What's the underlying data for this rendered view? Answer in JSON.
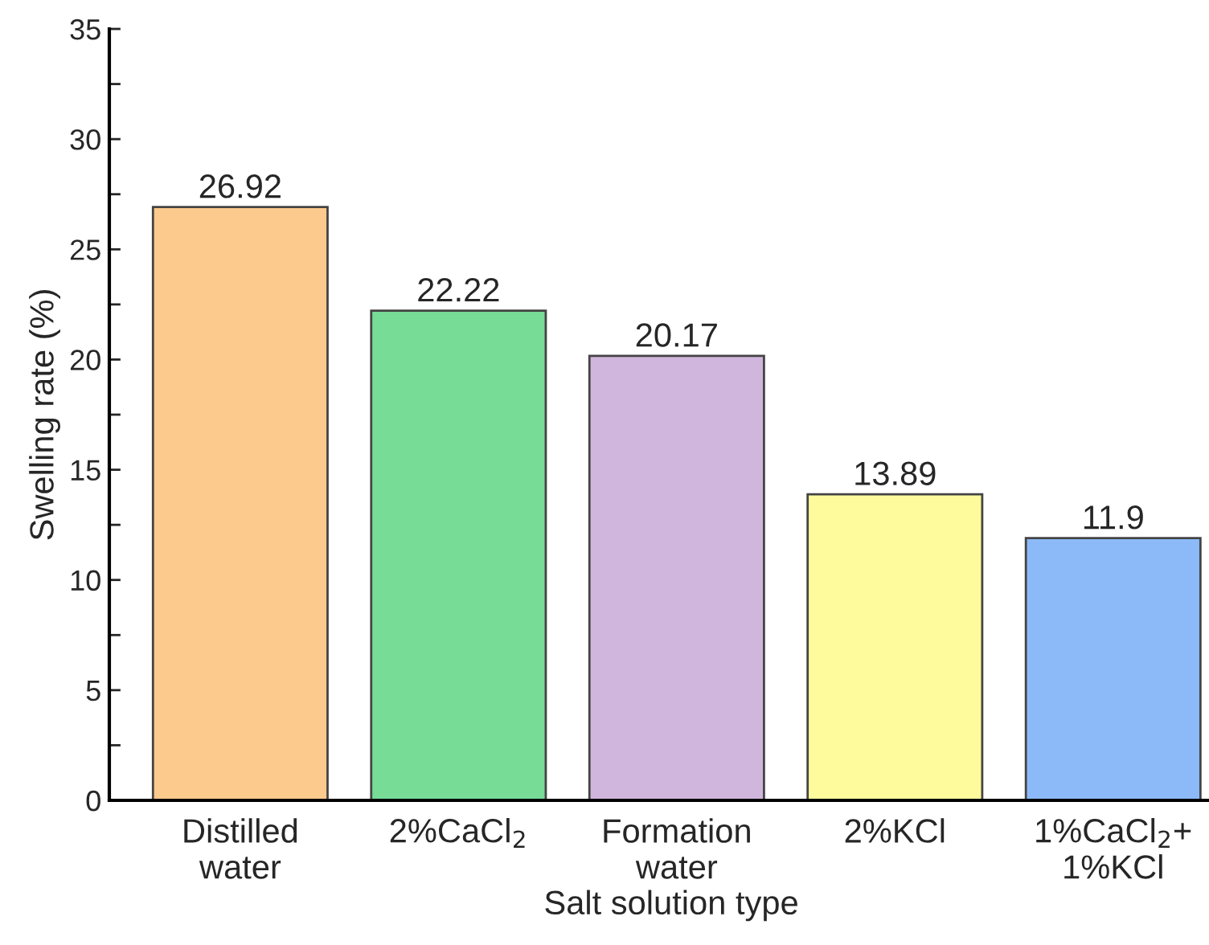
{
  "chart_data": {
    "type": "bar",
    "xlabel": "Salt solution type",
    "ylabel": "Swelling rate (%)",
    "categories": [
      "Distilled\nwater",
      "2%CaCl$_{2}$",
      "Formation\nwater",
      "2%KCl",
      "1%CaCl$_{2}$+\n1%KCl"
    ],
    "values": [
      26.92,
      22.22,
      20.17,
      13.89,
      11.9
    ],
    "colors": [
      "#fdca8e",
      "#76dc96",
      "#d0b6dc",
      "#fdfb9c",
      "#8cbaf8"
    ],
    "ylim": [
      0,
      35
    ],
    "yticks": [
      0,
      5,
      10,
      15,
      20,
      25,
      30,
      35
    ],
    "data_labels": true,
    "grid": false,
    "legend": false
  }
}
